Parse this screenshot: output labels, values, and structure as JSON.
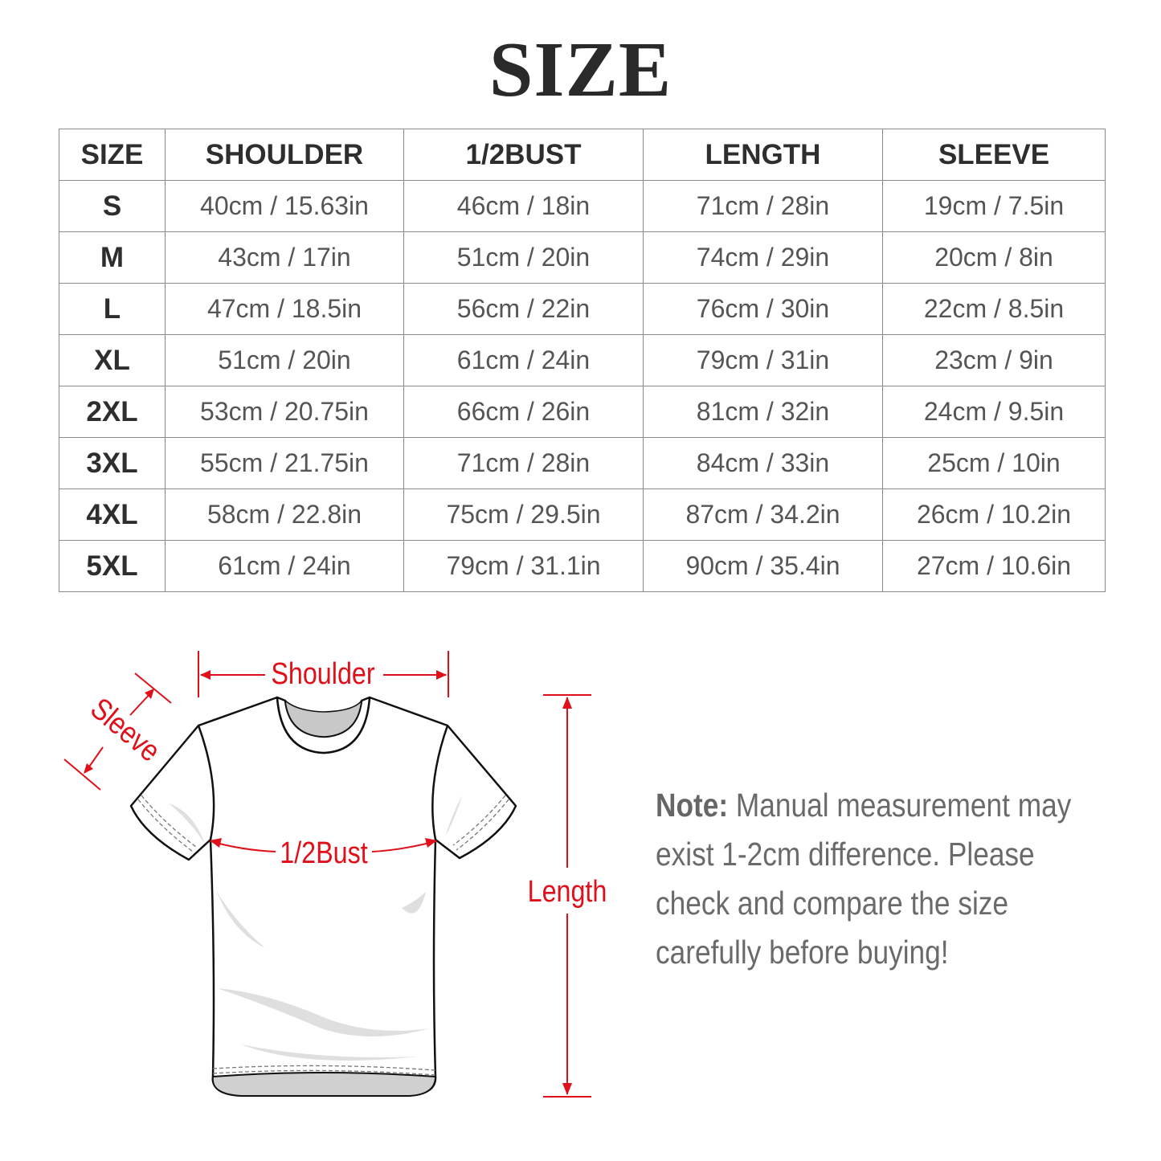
{
  "title": "SIZE",
  "table": {
    "headers": [
      "SIZE",
      "SHOULDER",
      "1/2BUST",
      "LENGTH",
      "SLEEVE"
    ],
    "rows": [
      [
        "S",
        "40cm / 15.63in",
        "46cm / 18in",
        "71cm / 28in",
        "19cm / 7.5in"
      ],
      [
        "M",
        "43cm / 17in",
        "51cm / 20in",
        "74cm / 29in",
        "20cm / 8in"
      ],
      [
        "L",
        "47cm / 18.5in",
        "56cm / 22in",
        "76cm / 30in",
        "22cm / 8.5in"
      ],
      [
        "XL",
        "51cm / 20in",
        "61cm / 24in",
        "79cm / 31in",
        "23cm / 9in"
      ],
      [
        "2XL",
        "53cm / 20.75in",
        "66cm / 26in",
        "81cm / 32in",
        "24cm / 9.5in"
      ],
      [
        "3XL",
        "55cm / 21.75in",
        "71cm / 28in",
        "84cm / 33in",
        "25cm / 10in"
      ],
      [
        "4XL",
        "58cm / 22.8in",
        "75cm / 29.5in",
        "87cm / 34.2in",
        "26cm / 10.2in"
      ],
      [
        "5XL",
        "61cm / 24in",
        "79cm / 31.1in",
        "90cm / 35.4in",
        "27cm / 10.6in"
      ]
    ]
  },
  "diagram": {
    "shoulder_label": "Shoulder",
    "sleeve_label": "Sleeve",
    "bust_label": "1/2Bust",
    "length_label": "Length",
    "accent_color": "#e0101a"
  },
  "note": {
    "label": "Note:",
    "text": " Manual measurement may exist 1-2cm difference. Please check and compare the size carefully before buying!"
  }
}
